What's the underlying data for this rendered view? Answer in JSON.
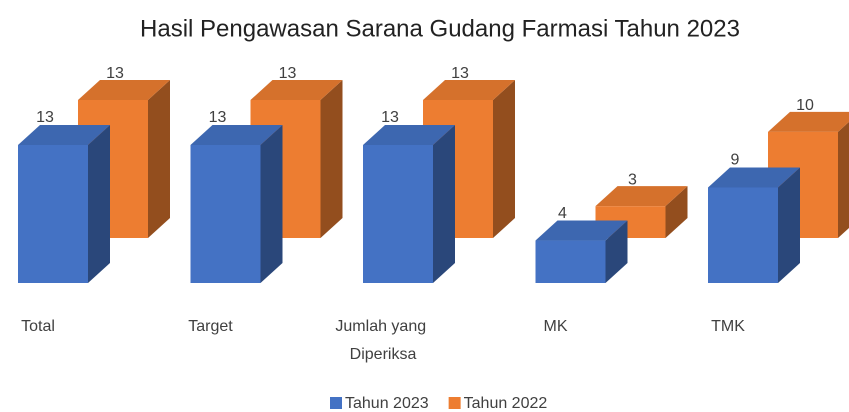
{
  "chart_data": {
    "type": "bar3d",
    "title": "Hasil Pengawasan Sarana Gudang Farmasi Tahun 2023",
    "categories": [
      "Total",
      "Target",
      "Jumlah yang Diperiksa",
      "MK",
      "TMK"
    ],
    "series": [
      {
        "name": "Tahun 2023",
        "color": "#4472c4",
        "values": [
          13,
          13,
          13,
          4,
          9
        ]
      },
      {
        "name": "Tahun 2022",
        "color": "#ed7d31",
        "values": [
          13,
          13,
          13,
          3,
          10
        ]
      }
    ],
    "legend": "bottom"
  }
}
